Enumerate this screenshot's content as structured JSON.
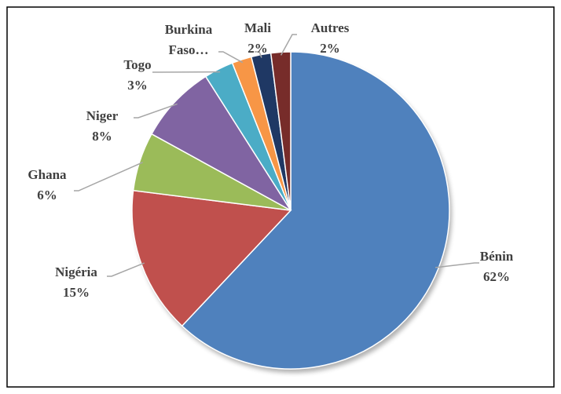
{
  "chart_data": {
    "type": "pie",
    "categories": [
      "Bénin",
      "Nigéria",
      "Ghana",
      "Niger",
      "Togo",
      "Burkina Faso…",
      "Mali",
      "Autres"
    ],
    "values": [
      62,
      15,
      6,
      8,
      3,
      2,
      2,
      2
    ],
    "value_labels": [
      "62%",
      "15%",
      "6%",
      "8%",
      "3%",
      null,
      "2%",
      "2%"
    ],
    "colors": [
      "#4f81bd",
      "#c0504d",
      "#9bbb59",
      "#8064a2",
      "#4bacc6",
      "#f79646",
      "#1f3864",
      "#772c2a"
    ]
  }
}
